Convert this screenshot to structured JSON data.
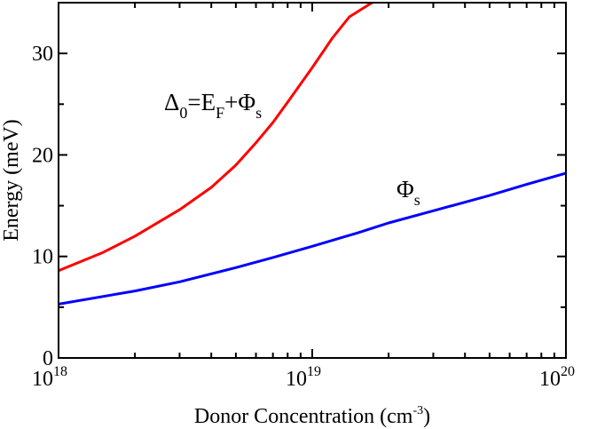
{
  "chart_data": {
    "type": "line",
    "xlabel": {
      "base": "Donor Concentration (cm",
      "sup": "-3",
      "tail": ")"
    },
    "ylabel": "Energy (meV)",
    "x_scale": "log",
    "xlim": [
      1e+18,
      1e+20
    ],
    "ylim": [
      0,
      35
    ],
    "x_ticks": [
      {
        "value": 1e+18,
        "base": "10",
        "exp": "18"
      },
      {
        "value": 1e+19,
        "base": "10",
        "exp": "19"
      },
      {
        "value": 1e+20,
        "base": "10",
        "exp": "20"
      }
    ],
    "y_ticks": [
      0,
      10,
      20,
      30
    ],
    "grid": false,
    "legend": "none",
    "series": [
      {
        "color": "#ff0000",
        "points": [
          [
            1e+18,
            8.6
          ],
          [
            1.5e+18,
            10.4
          ],
          [
            2e+18,
            12.0
          ],
          [
            3e+18,
            14.6
          ],
          [
            4e+18,
            16.8
          ],
          [
            5e+18,
            19.0
          ],
          [
            6e+18,
            21.2
          ],
          [
            7e+18,
            23.2
          ],
          [
            8e+18,
            25.2
          ],
          [
            1e+19,
            28.6
          ],
          [
            1.2e+19,
            31.5
          ],
          [
            1.4e+19,
            33.6
          ],
          [
            1.72e+19,
            35.0
          ]
        ]
      },
      {
        "color": "#0000ff",
        "points": [
          [
            1e+18,
            5.3
          ],
          [
            2e+18,
            6.6
          ],
          [
            3e+18,
            7.5
          ],
          [
            5e+18,
            8.9
          ],
          [
            7e+18,
            9.9
          ],
          [
            1e+19,
            11.0
          ],
          [
            1.5e+19,
            12.3
          ],
          [
            2e+19,
            13.3
          ],
          [
            3e+19,
            14.5
          ],
          [
            5e+19,
            16.0
          ],
          [
            7e+19,
            17.1
          ],
          [
            1e+20,
            18.2
          ]
        ]
      }
    ],
    "annotations": [
      {
        "target": "red",
        "parts": [
          {
            "t": "Δ",
            "sub": false
          },
          {
            "t": "0",
            "sub": true
          },
          {
            "t": "=E",
            "sub": false
          },
          {
            "t": "F",
            "sub": true
          },
          {
            "t": "+Φ",
            "sub": false
          },
          {
            "t": "s",
            "sub": true
          }
        ]
      },
      {
        "target": "blue",
        "parts": [
          {
            "t": "Φ",
            "sub": false
          },
          {
            "t": "s",
            "sub": true
          }
        ]
      }
    ]
  }
}
